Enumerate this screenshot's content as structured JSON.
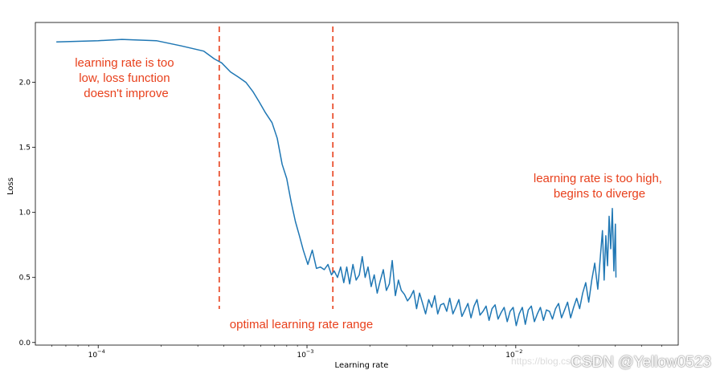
{
  "colors": {
    "line": "#1f77b4",
    "annotation": "#e8401c",
    "axis": "#000000",
    "vline": "#e8401c"
  },
  "chart_data": {
    "type": "line",
    "xscale": "log",
    "xlabel": "Learning rate",
    "ylabel": "Loss",
    "xlim": [
      5e-05,
      0.06
    ],
    "ylim": [
      -0.02,
      2.46
    ],
    "x_ticks": [
      {
        "value": 0.0001,
        "base": "10",
        "exp": "−4"
      },
      {
        "value": 0.001,
        "base": "10",
        "exp": "−3"
      },
      {
        "value": 0.01,
        "base": "10",
        "exp": "−2"
      }
    ],
    "y_ticks": [
      {
        "value": 0.0,
        "label": "0.0"
      },
      {
        "value": 0.5,
        "label": "0.5"
      },
      {
        "value": 1.0,
        "label": "1.0"
      },
      {
        "value": 1.5,
        "label": "1.5"
      },
      {
        "value": 2.0,
        "label": "2.0"
      }
    ],
    "optimal_range": [
      0.00038,
      0.00133
    ],
    "series": [
      {
        "name": "Loss",
        "x": [
          6.3e-05,
          0.0001,
          0.00013,
          0.00019,
          0.00025,
          0.00032,
          0.00036,
          0.00039,
          0.00043,
          0.00047,
          0.00051,
          0.00055,
          0.00059,
          0.00063,
          0.00068,
          0.00072,
          0.00076,
          0.0008,
          0.00084,
          0.00088,
          0.00092,
          0.00096,
          0.00101,
          0.00106,
          0.00111,
          0.00116,
          0.00121,
          0.00126,
          0.00131,
          0.00135,
          0.0014,
          0.00145,
          0.0015,
          0.00155,
          0.0016,
          0.00166,
          0.00172,
          0.00178,
          0.00184,
          0.0019,
          0.00196,
          0.00203,
          0.0021,
          0.00217,
          0.00224,
          0.00232,
          0.0024,
          0.00248,
          0.00256,
          0.00265,
          0.00274,
          0.00283,
          0.00293,
          0.00303,
          0.00313,
          0.00324,
          0.00335,
          0.00346,
          0.00358,
          0.0037,
          0.00383,
          0.00396,
          0.00409,
          0.00423,
          0.00437,
          0.00452,
          0.00467,
          0.00483,
          0.005,
          0.00516,
          0.00534,
          0.00552,
          0.00571,
          0.0059,
          0.0061,
          0.00631,
          0.00652,
          0.00674,
          0.00697,
          0.00721,
          0.00745,
          0.0077,
          0.00796,
          0.00823,
          0.00851,
          0.0088,
          0.0091,
          0.0094,
          0.00972,
          0.01005,
          0.01039,
          0.01075,
          0.01111,
          0.01148,
          0.01187,
          0.01228,
          0.01269,
          0.01312,
          0.01357,
          0.01403,
          0.0145,
          0.01499,
          0.0155,
          0.01603,
          0.01657,
          0.01713,
          0.01771,
          0.01831,
          0.01893,
          0.01957,
          0.02023,
          0.02092,
          0.02163,
          0.02236,
          0.02312,
          0.0239,
          0.0247,
          0.02542,
          0.02602,
          0.0265,
          0.027,
          0.0275,
          0.028,
          0.0285,
          0.029,
          0.0295,
          0.03,
          0.0302
        ],
        "y": [
          2.31,
          2.32,
          2.33,
          2.32,
          2.28,
          2.24,
          2.18,
          2.15,
          2.08,
          2.04,
          2.0,
          1.93,
          1.85,
          1.77,
          1.69,
          1.57,
          1.37,
          1.26,
          1.08,
          0.93,
          0.82,
          0.71,
          0.6,
          0.71,
          0.57,
          0.58,
          0.56,
          0.6,
          0.52,
          0.55,
          0.5,
          0.58,
          0.46,
          0.58,
          0.45,
          0.6,
          0.48,
          0.52,
          0.66,
          0.5,
          0.58,
          0.43,
          0.52,
          0.38,
          0.47,
          0.56,
          0.4,
          0.45,
          0.63,
          0.36,
          0.48,
          0.4,
          0.37,
          0.32,
          0.35,
          0.4,
          0.26,
          0.38,
          0.3,
          0.22,
          0.33,
          0.27,
          0.36,
          0.22,
          0.29,
          0.3,
          0.24,
          0.34,
          0.22,
          0.27,
          0.33,
          0.2,
          0.25,
          0.3,
          0.19,
          0.28,
          0.33,
          0.21,
          0.24,
          0.28,
          0.17,
          0.26,
          0.29,
          0.18,
          0.23,
          0.27,
          0.16,
          0.24,
          0.27,
          0.13,
          0.22,
          0.27,
          0.14,
          0.25,
          0.28,
          0.16,
          0.22,
          0.27,
          0.17,
          0.25,
          0.24,
          0.18,
          0.26,
          0.3,
          0.19,
          0.25,
          0.31,
          0.19,
          0.27,
          0.34,
          0.26,
          0.38,
          0.46,
          0.31,
          0.48,
          0.61,
          0.41,
          0.66,
          0.86,
          0.48,
          0.82,
          0.59,
          0.97,
          0.72,
          1.03,
          0.55,
          0.91,
          0.5
        ]
      }
    ],
    "annotations": [
      {
        "lines": [
          "learning rate is too",
          "low, loss function",
          "doesn't improve"
        ]
      },
      {
        "lines": [
          "learning rate is too high,",
          "begins to diverge"
        ]
      },
      {
        "lines": [
          "optimal learning rate range"
        ]
      }
    ]
  },
  "watermark": {
    "text": "CSDN @Yellow0523",
    "faint": "https://blog.csdn.net/"
  }
}
